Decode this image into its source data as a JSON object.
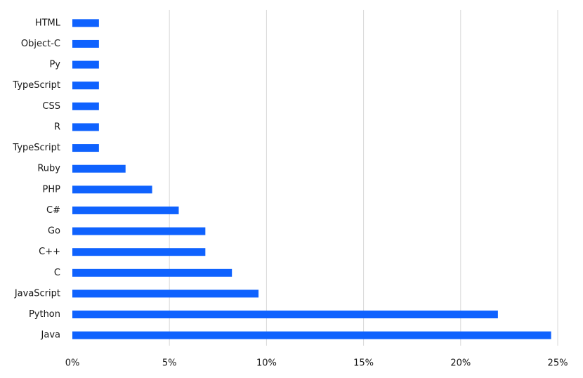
{
  "chart_data": {
    "type": "hbar",
    "categories": [
      "HTML",
      "Object-C",
      "Py",
      "TypeScript",
      "CSS",
      "R",
      "TypeScript",
      "Ruby",
      "PHP",
      "C#",
      "Go",
      "C++",
      "C",
      "JavaScript",
      "Python",
      "Java"
    ],
    "values": [
      1.37,
      1.37,
      1.37,
      1.37,
      1.37,
      1.37,
      1.37,
      2.74,
      4.11,
      5.48,
      6.85,
      6.85,
      8.22,
      9.59,
      21.92,
      24.66
    ],
    "color": "#0f62fe",
    "xlim": [
      0,
      25
    ],
    "xticks": [
      {
        "value": 0,
        "label": "0%"
      },
      {
        "value": 5,
        "label": "5%"
      },
      {
        "value": 10,
        "label": "10%"
      },
      {
        "value": 15,
        "label": "15%"
      },
      {
        "value": 20,
        "label": "20%"
      },
      {
        "value": 25,
        "label": "25%"
      }
    ],
    "grid": true
  }
}
